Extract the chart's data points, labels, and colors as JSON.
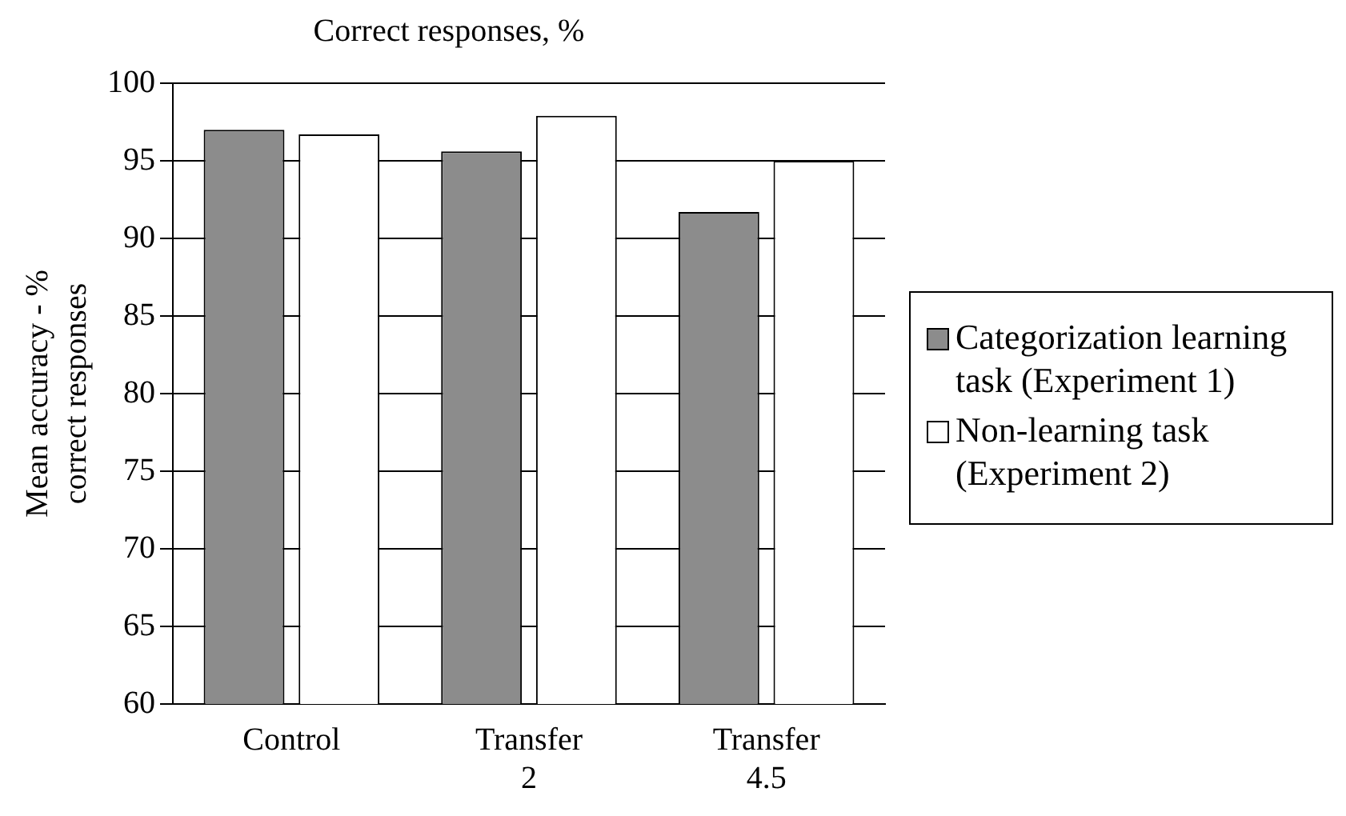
{
  "chart_data": {
    "type": "bar",
    "title": "Correct responses, %",
    "ylabel": "Mean accuracy - % correct responses",
    "categories": [
      "Control",
      "Transfer 2",
      "Transfer 4.5"
    ],
    "series": [
      {
        "name": "Categorization learning task (Experiment 1)",
        "color": "#8c8c8c",
        "values": [
          97,
          95.6,
          91.7
        ]
      },
      {
        "name": "Non-learning task (Experiment 2)",
        "color": "#ffffff",
        "values": [
          96.7,
          97.9,
          95
        ]
      }
    ],
    "ylim": [
      60,
      100
    ],
    "yticks": [
      60,
      65,
      70,
      75,
      80,
      85,
      90,
      95,
      100
    ],
    "grid": "y",
    "legend": "right"
  }
}
